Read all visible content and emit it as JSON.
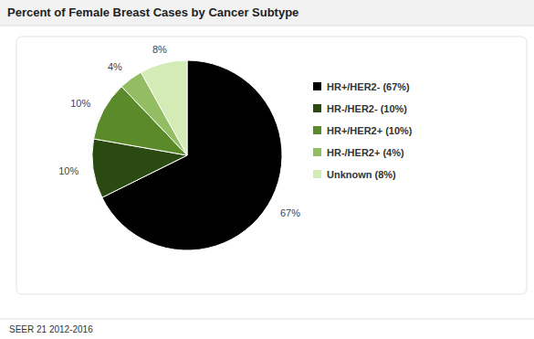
{
  "chart_data": {
    "type": "pie",
    "title": "Percent of Female Breast Cases by Cancer Subtype",
    "categories": [
      "HR+/HER2- (67%)",
      "HR-/HER2- (10%)",
      "HR+/HER2+ (10%)",
      "HR-/HER2+ (4%)",
      "Unknown (8%)"
    ],
    "values": [
      67,
      10,
      10,
      4,
      8
    ],
    "value_labels": [
      "67%",
      "10%",
      "10%",
      "4%",
      "8%"
    ],
    "colors": [
      "#000000",
      "#2b4a12",
      "#5a8a2a",
      "#93bd62",
      "#d3ecb6"
    ],
    "data_labels": true,
    "legend": "right",
    "annotations": [
      "SEER 21 2012-2016"
    ]
  }
}
